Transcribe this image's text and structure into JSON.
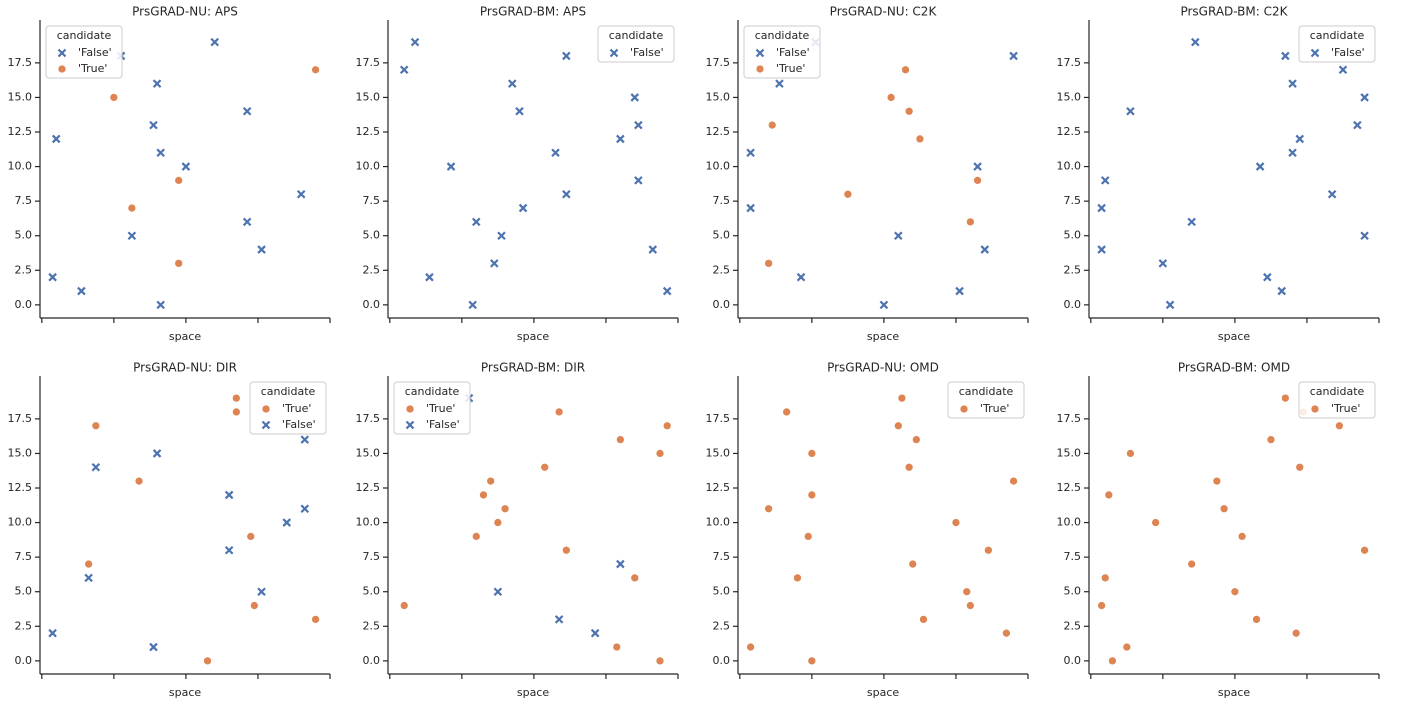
{
  "chart_data": [
    {
      "type": "scatter",
      "title": "PrsGRAD-NU: APS",
      "xlabel": "space",
      "xlim": [
        -0.05,
        8.0
      ],
      "xticks": [
        0,
        2,
        4,
        6,
        8
      ],
      "ylim": [
        -0.95,
        20.6
      ],
      "yticks": [
        {
          "value": 0,
          "label": "0.0"
        },
        2.5,
        {
          "value": 5,
          "label": "5.0"
        },
        7.5,
        {
          "value": 10,
          "label": "10.0"
        },
        12.5,
        {
          "value": 15,
          "label": "15.0"
        },
        17.5
      ],
      "legend_title": "candidate",
      "legend": "upper left",
      "series": [
        {
          "name": "'False'",
          "color": "#4c72b0",
          "marker": "x",
          "x": [
            0.3,
            0.4,
            1.1,
            2.2,
            2.5,
            3.1,
            3.2,
            3.3,
            3.3,
            4.0,
            4.8,
            5.7,
            5.7,
            6.1,
            7.2
          ],
          "values": [
            2,
            12,
            1,
            18,
            5,
            13,
            16,
            11,
            0,
            10,
            19,
            6,
            14,
            4,
            8
          ]
        },
        {
          "name": "'True'",
          "color": "#dd8452",
          "marker": "o",
          "x": [
            2.0,
            2.5,
            3.8,
            3.8,
            7.6
          ],
          "values": [
            15,
            7,
            9,
            3,
            17
          ]
        }
      ]
    },
    {
      "type": "scatter",
      "title": "PrsGRAD-BM: APS",
      "xlabel": "space",
      "xlim": [
        -0.05,
        8.0
      ],
      "xticks": [
        0,
        2,
        4,
        6,
        8
      ],
      "ylim": [
        -0.95,
        20.6
      ],
      "yticks": [
        {
          "value": 0,
          "label": "0.0"
        },
        2.5,
        {
          "value": 5,
          "label": "5.0"
        },
        7.5,
        {
          "value": 10,
          "label": "10.0"
        },
        12.5,
        {
          "value": 15,
          "label": "15.0"
        },
        17.5
      ],
      "legend_title": "candidate",
      "legend": "upper right",
      "series": [
        {
          "name": "'False'",
          "color": "#4c72b0",
          "marker": "x",
          "x": [
            0.4,
            0.7,
            1.1,
            1.7,
            2.3,
            2.4,
            2.9,
            3.1,
            3.4,
            3.6,
            3.7,
            4.6,
            4.9,
            4.9,
            6.4,
            6.8,
            6.9,
            6.9,
            7.3,
            7.7
          ],
          "values": [
            17,
            19,
            2,
            10,
            0,
            6,
            3,
            5,
            16,
            14,
            7,
            11,
            8,
            18,
            12,
            15,
            13,
            9,
            4,
            1
          ]
        }
      ]
    },
    {
      "type": "scatter",
      "title": "PrsGRAD-NU: C2K",
      "xlabel": "space",
      "xlim": [
        -0.05,
        8.0
      ],
      "xticks": [
        0,
        2,
        4,
        6,
        8
      ],
      "ylim": [
        -0.95,
        20.6
      ],
      "yticks": [
        {
          "value": 0,
          "label": "0.0"
        },
        2.5,
        {
          "value": 5,
          "label": "5.0"
        },
        7.5,
        {
          "value": 10,
          "label": "10.0"
        },
        12.5,
        {
          "value": 15,
          "label": "15.0"
        },
        17.5
      ],
      "legend_title": "candidate",
      "legend": "upper left",
      "series": [
        {
          "name": "'False'",
          "color": "#4c72b0",
          "marker": "x",
          "x": [
            0.3,
            0.3,
            1.1,
            1.7,
            2.1,
            4.0,
            4.4,
            6.1,
            6.6,
            6.8,
            7.6
          ],
          "values": [
            11,
            7,
            16,
            2,
            19,
            0,
            5,
            1,
            10,
            4,
            18
          ]
        },
        {
          "name": "'True'",
          "color": "#dd8452",
          "marker": "o",
          "x": [
            0.8,
            0.9,
            3.0,
            4.2,
            4.6,
            4.7,
            5.0,
            6.4,
            6.6
          ],
          "values": [
            3,
            13,
            8,
            15,
            17,
            14,
            12,
            6,
            9
          ]
        }
      ]
    },
    {
      "type": "scatter",
      "title": "PrsGRAD-BM: C2K",
      "xlabel": "space",
      "xlim": [
        -0.05,
        8.0
      ],
      "xticks": [
        0,
        2,
        4,
        6,
        8
      ],
      "ylim": [
        -0.95,
        20.6
      ],
      "yticks": [
        {
          "value": 0,
          "label": "0.0"
        },
        2.5,
        {
          "value": 5,
          "label": "5.0"
        },
        7.5,
        {
          "value": 10,
          "label": "10.0"
        },
        12.5,
        {
          "value": 15,
          "label": "15.0"
        },
        17.5
      ],
      "legend_title": "candidate",
      "legend": "upper right",
      "series": [
        {
          "name": "'False'",
          "color": "#4c72b0",
          "marker": "x",
          "x": [
            0.3,
            0.3,
            0.4,
            1.1,
            2.0,
            2.2,
            2.8,
            2.9,
            4.7,
            4.9,
            5.3,
            5.4,
            5.6,
            5.6,
            5.8,
            6.7,
            7.0,
            7.4,
            7.6,
            7.6
          ],
          "values": [
            4,
            7,
            9,
            14,
            3,
            0,
            6,
            19,
            10,
            2,
            1,
            18,
            11,
            16,
            12,
            8,
            17,
            13,
            15,
            5
          ]
        }
      ]
    },
    {
      "type": "scatter",
      "title": "PrsGRAD-NU: DIR",
      "xlabel": "space",
      "xlim": [
        -0.05,
        8.0
      ],
      "xticks": [
        0,
        2,
        4,
        6,
        8
      ],
      "ylim": [
        -0.95,
        20.6
      ],
      "yticks": [
        {
          "value": 0,
          "label": "0.0"
        },
        2.5,
        {
          "value": 5,
          "label": "5.0"
        },
        7.5,
        {
          "value": 10,
          "label": "10.0"
        },
        12.5,
        {
          "value": 15,
          "label": "15.0"
        },
        17.5
      ],
      "legend_title": "candidate",
      "legend": "upper right",
      "series": [
        {
          "name": "'True'",
          "color": "#dd8452",
          "marker": "o",
          "x": [
            1.3,
            1.5,
            2.7,
            4.6,
            5.4,
            5.4,
            5.8,
            5.9,
            7.6
          ],
          "values": [
            7,
            17,
            13,
            0,
            19,
            18,
            9,
            4,
            3
          ]
        },
        {
          "name": "'False'",
          "color": "#4c72b0",
          "marker": "x",
          "x": [
            0.3,
            1.3,
            1.5,
            3.1,
            3.2,
            5.2,
            5.2,
            6.1,
            6.8,
            7.3,
            7.3
          ],
          "values": [
            2,
            6,
            14,
            1,
            15,
            12,
            8,
            5,
            10,
            11,
            16
          ]
        }
      ]
    },
    {
      "type": "scatter",
      "title": "PrsGRAD-BM: DIR",
      "xlabel": "space",
      "xlim": [
        -0.05,
        8.0
      ],
      "xticks": [
        0,
        2,
        4,
        6,
        8
      ],
      "ylim": [
        -0.95,
        20.6
      ],
      "yticks": [
        {
          "value": 0,
          "label": "0.0"
        },
        2.5,
        {
          "value": 5,
          "label": "5.0"
        },
        7.5,
        {
          "value": 10,
          "label": "10.0"
        },
        12.5,
        {
          "value": 15,
          "label": "15.0"
        },
        17.5
      ],
      "legend_title": "candidate",
      "legend": "upper left",
      "series": [
        {
          "name": "'True'",
          "color": "#dd8452",
          "marker": "o",
          "x": [
            0.4,
            2.4,
            2.6,
            2.8,
            3.0,
            3.2,
            4.3,
            4.7,
            4.9,
            6.3,
            6.4,
            6.8,
            7.5,
            7.5,
            7.7
          ],
          "values": [
            4,
            9,
            12,
            13,
            10,
            11,
            14,
            18,
            8,
            1,
            16,
            6,
            0,
            15,
            17
          ]
        },
        {
          "name": "'False'",
          "color": "#4c72b0",
          "marker": "x",
          "x": [
            2.2,
            3.0,
            4.7,
            5.7,
            6.4
          ],
          "values": [
            19,
            5,
            3,
            2,
            7
          ]
        }
      ]
    },
    {
      "type": "scatter",
      "title": "PrsGRAD-NU: OMD",
      "xlabel": "space",
      "xlim": [
        -0.05,
        8.0
      ],
      "xticks": [
        0,
        2,
        4,
        6,
        8
      ],
      "ylim": [
        -0.95,
        20.6
      ],
      "yticks": [
        {
          "value": 0,
          "label": "0.0"
        },
        2.5,
        {
          "value": 5,
          "label": "5.0"
        },
        7.5,
        {
          "value": 10,
          "label": "10.0"
        },
        12.5,
        {
          "value": 15,
          "label": "15.0"
        },
        17.5
      ],
      "legend_title": "candidate",
      "legend": "upper right",
      "series": [
        {
          "name": "'True'",
          "color": "#dd8452",
          "marker": "o",
          "x": [
            0.3,
            0.8,
            1.3,
            1.6,
            1.9,
            2.0,
            2.0,
            2.0,
            4.4,
            4.5,
            4.7,
            4.8,
            4.9,
            5.1,
            6.0,
            6.3,
            6.4,
            6.9,
            7.4,
            7.6
          ],
          "values": [
            1,
            11,
            18,
            6,
            9,
            15,
            12,
            0,
            17,
            19,
            14,
            7,
            16,
            3,
            10,
            5,
            4,
            8,
            2,
            13
          ]
        }
      ]
    },
    {
      "type": "scatter",
      "title": "PrsGRAD-BM: OMD",
      "xlabel": "space",
      "xlim": [
        -0.05,
        8.0
      ],
      "xticks": [
        0,
        2,
        4,
        6,
        8
      ],
      "ylim": [
        -0.95,
        20.6
      ],
      "yticks": [
        {
          "value": 0,
          "label": "0.0"
        },
        2.5,
        {
          "value": 5,
          "label": "5.0"
        },
        7.5,
        {
          "value": 10,
          "label": "10.0"
        },
        12.5,
        {
          "value": 15,
          "label": "15.0"
        },
        17.5
      ],
      "legend_title": "candidate",
      "legend": "upper right",
      "series": [
        {
          "name": "'True'",
          "color": "#dd8452",
          "marker": "o",
          "x": [
            0.3,
            0.4,
            0.5,
            0.6,
            1.0,
            1.1,
            1.8,
            2.8,
            3.5,
            3.7,
            4.0,
            4.2,
            4.6,
            5.0,
            5.4,
            5.7,
            5.8,
            5.9,
            6.9,
            7.6
          ],
          "values": [
            4,
            6,
            12,
            0,
            1,
            15,
            10,
            7,
            13,
            11,
            5,
            9,
            3,
            16,
            19,
            2,
            14,
            18,
            17,
            8
          ]
        }
      ]
    }
  ]
}
